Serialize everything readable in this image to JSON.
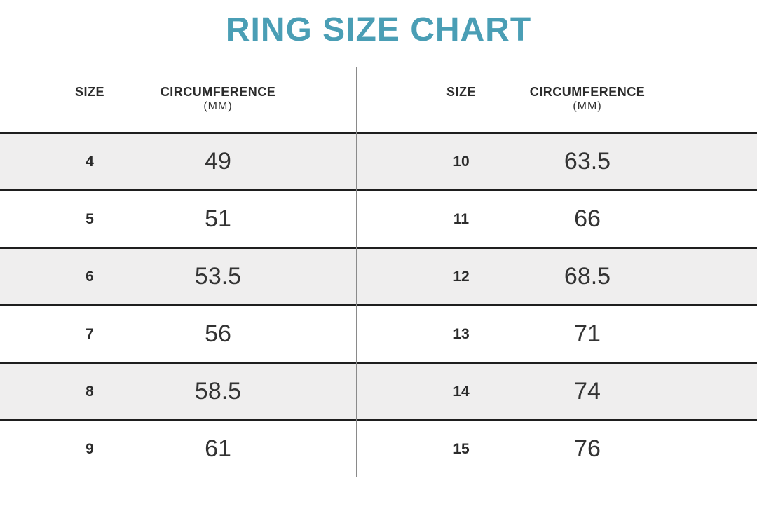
{
  "title": "RING SIZE CHART",
  "colors": {
    "accent": "#4A9EB5",
    "row_stripe": "#EFEEEE",
    "rule_line": "#1E1E1E",
    "divider": "#8A8A8A",
    "heading_text": "#2B2B2B",
    "number_text": "#333333"
  },
  "table": {
    "headers": {
      "size": "SIZE",
      "circumference": "CIRCUMFERENCE",
      "unit": "(MM)"
    },
    "left": {
      "rows": [
        {
          "size": "4",
          "circ": "49"
        },
        {
          "size": "5",
          "circ": "51"
        },
        {
          "size": "6",
          "circ": "53.5"
        },
        {
          "size": "7",
          "circ": "56"
        },
        {
          "size": "8",
          "circ": "58.5"
        },
        {
          "size": "9",
          "circ": "61"
        }
      ]
    },
    "right": {
      "rows": [
        {
          "size": "10",
          "circ": "63.5"
        },
        {
          "size": "11",
          "circ": "66"
        },
        {
          "size": "12",
          "circ": "68.5"
        },
        {
          "size": "13",
          "circ": "71"
        },
        {
          "size": "14",
          "circ": "74"
        },
        {
          "size": "15",
          "circ": "76"
        }
      ]
    }
  },
  "chart_data": {
    "type": "table",
    "title": "RING SIZE CHART",
    "columns": [
      "SIZE",
      "CIRCUMFERENCE (MM)"
    ],
    "rows": [
      [
        4,
        49
      ],
      [
        5,
        51
      ],
      [
        6,
        53.5
      ],
      [
        7,
        56
      ],
      [
        8,
        58.5
      ],
      [
        9,
        61
      ],
      [
        10,
        63.5
      ],
      [
        11,
        66
      ],
      [
        12,
        68.5
      ],
      [
        13,
        71
      ],
      [
        14,
        74
      ],
      [
        15,
        76
      ]
    ],
    "layout": "two side-by-side column groups split by vertical divider; alternating gray row stripes starting with first data row"
  }
}
